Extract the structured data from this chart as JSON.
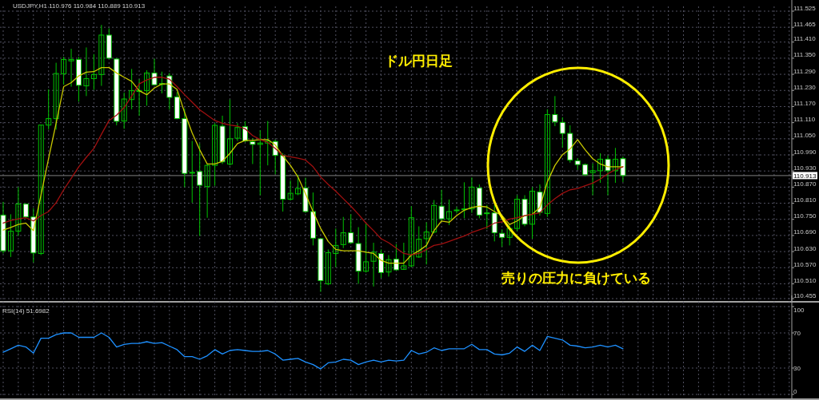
{
  "chart_data": [
    {
      "type": "candlestick",
      "title": "USDJPY,H1 110.976 110.984 110.889 110.913",
      "categories": [
        null,
        null,
        null,
        null,
        null,
        null,
        null,
        null,
        null,
        null,
        null,
        null,
        null,
        null,
        null,
        null,
        null,
        null,
        null,
        null,
        null,
        null,
        null,
        null,
        null,
        null,
        null,
        null,
        null,
        null,
        null,
        null,
        null,
        null,
        null,
        null,
        null,
        null,
        null,
        null,
        null,
        null,
        null,
        null,
        null,
        null,
        null,
        null,
        null,
        null,
        null,
        null,
        null,
        null,
        null,
        null,
        null,
        null,
        null,
        null,
        null,
        null,
        null,
        null,
        null,
        null,
        null,
        null,
        null,
        null,
        null,
        null,
        null,
        null,
        null,
        null,
        null,
        null,
        null,
        null,
        null,
        null,
        null
      ],
      "color": "#00c000",
      "ohlc": [
        [
          110.766,
          110.815,
          110.623,
          110.633
        ],
        [
          110.633,
          110.769,
          110.61,
          110.706
        ],
        [
          110.706,
          110.87,
          110.688,
          110.807
        ],
        [
          110.807,
          110.809,
          110.754,
          110.759
        ],
        [
          110.759,
          110.792,
          110.59,
          110.625
        ],
        [
          110.623,
          111.101,
          110.617,
          111.101
        ],
        [
          111.101,
          111.234,
          111.084,
          111.125
        ],
        [
          111.125,
          111.333,
          111.084,
          111.293
        ],
        [
          111.292,
          111.355,
          111.251,
          111.345
        ],
        [
          111.34,
          111.385,
          111.244,
          111.345
        ],
        [
          111.345,
          111.355,
          111.188,
          111.249
        ],
        [
          111.247,
          111.39,
          111.209,
          111.274
        ],
        [
          111.274,
          111.365,
          111.232,
          111.289
        ],
        [
          111.289,
          111.474,
          111.247,
          111.436
        ],
        [
          111.436,
          111.461,
          111.348,
          111.35
        ],
        [
          111.347,
          111.35,
          111.1,
          111.115
        ],
        [
          111.116,
          111.222,
          111.087,
          111.198
        ],
        [
          111.196,
          111.31,
          111.16,
          111.229
        ],
        [
          111.228,
          111.272,
          111.136,
          111.229
        ],
        [
          111.229,
          111.305,
          111.173,
          111.295
        ],
        [
          111.295,
          111.348,
          111.249,
          111.251
        ],
        [
          111.252,
          111.3,
          111.219,
          111.256
        ],
        [
          111.284,
          111.295,
          111.158,
          111.204
        ],
        [
          111.206,
          111.224,
          111.123,
          111.125
        ],
        [
          111.125,
          111.163,
          110.87,
          110.921
        ],
        [
          110.923,
          111.042,
          110.812,
          110.925
        ],
        [
          110.928,
          111.032,
          110.688,
          110.877
        ],
        [
          110.872,
          110.956,
          110.756,
          110.951
        ],
        [
          110.951,
          111.108,
          110.875,
          111.1
        ],
        [
          111.097,
          111.136,
          110.956,
          110.964
        ],
        [
          110.956,
          111.196,
          110.951,
          111.05
        ],
        [
          111.052,
          111.108,
          111.042,
          111.092
        ],
        [
          111.095,
          111.116,
          111.037,
          111.042
        ],
        [
          111.039,
          111.052,
          110.956,
          111.029
        ],
        [
          111.029,
          111.082,
          110.84,
          111.034
        ],
        [
          111.034,
          111.116,
          110.951,
          111.042
        ],
        [
          111.04,
          111.047,
          110.918,
          110.988
        ],
        [
          110.988,
          110.996,
          110.779,
          110.825
        ],
        [
          110.825,
          110.895,
          110.82,
          110.847
        ],
        [
          110.845,
          110.916,
          110.84,
          110.865
        ],
        [
          110.867,
          110.905,
          110.774,
          110.779
        ],
        [
          110.779,
          110.85,
          110.653,
          110.68
        ],
        [
          110.678,
          110.68,
          110.48,
          110.522
        ],
        [
          110.51,
          110.638,
          110.505,
          110.626
        ],
        [
          110.623,
          110.716,
          110.572,
          110.653
        ],
        [
          110.656,
          110.759,
          110.643,
          110.7
        ],
        [
          110.7,
          110.769,
          110.658,
          110.663
        ],
        [
          110.66,
          110.721,
          110.51,
          110.557
        ],
        [
          110.557,
          110.736,
          110.552,
          110.592
        ],
        [
          110.594,
          110.663,
          110.5,
          110.628
        ],
        [
          110.623,
          110.638,
          110.532,
          110.552
        ],
        [
          110.554,
          110.617,
          110.537,
          110.6
        ],
        [
          110.602,
          110.658,
          110.56,
          110.562
        ],
        [
          110.564,
          110.663,
          110.562,
          110.577
        ],
        [
          110.577,
          110.799,
          110.572,
          110.756
        ],
        [
          110.61,
          110.724,
          110.607,
          110.676
        ],
        [
          110.678,
          110.739,
          110.582,
          110.703
        ],
        [
          110.703,
          110.822,
          110.698,
          110.802
        ],
        [
          110.799,
          110.86,
          110.744,
          110.752
        ],
        [
          110.752,
          110.824,
          110.729,
          110.779
        ],
        [
          110.783,
          110.796,
          110.772,
          110.785
        ],
        [
          110.787,
          110.888,
          110.754,
          110.789
        ],
        [
          110.789,
          110.906,
          110.774,
          110.87
        ],
        [
          110.867,
          110.88,
          110.754,
          110.766
        ],
        [
          110.774,
          110.804,
          110.714,
          110.772
        ],
        [
          110.774,
          110.804,
          110.668,
          110.7
        ],
        [
          110.698,
          110.713,
          110.648,
          110.683
        ],
        [
          110.683,
          110.734,
          110.653,
          110.716
        ],
        [
          110.716,
          110.84,
          110.706,
          110.825
        ],
        [
          110.825,
          110.84,
          110.724,
          110.732
        ],
        [
          110.732,
          110.87,
          110.678,
          110.855
        ],
        [
          110.852,
          110.88,
          110.764,
          110.776
        ],
        [
          110.772,
          111.16,
          110.759,
          111.14
        ],
        [
          111.14,
          111.209,
          111.097,
          111.113
        ],
        [
          111.111,
          111.13,
          111.017,
          111.07
        ],
        [
          111.07,
          111.1,
          110.961,
          110.971
        ],
        [
          110.968,
          110.978,
          110.934,
          110.954
        ],
        [
          110.954,
          110.958,
          110.911,
          110.916
        ],
        [
          110.924,
          110.958,
          110.84,
          110.931
        ],
        [
          110.931,
          110.996,
          110.886,
          110.974
        ],
        [
          110.974,
          110.988,
          110.84,
          110.931
        ],
        [
          110.931,
          111.016,
          110.886,
          110.974
        ],
        [
          110.976,
          110.984,
          110.889,
          110.913
        ]
      ],
      "series": [
        {
          "type": "line",
          "color": "#c8c800",
          "values": [
            110.71,
            110.72,
            110.731,
            110.736,
            110.708,
            110.84,
            110.976,
            111.108,
            111.244,
            111.259,
            111.284,
            111.298,
            111.3,
            111.315,
            111.315,
            111.295,
            111.279,
            111.264,
            111.229,
            111.214,
            111.239,
            111.254,
            111.254,
            111.234,
            111.148,
            111.072,
            111.009,
            110.956,
            110.956,
            110.966,
            110.996,
            111.032,
            111.044,
            111.044,
            111.047,
            111.047,
            111.027,
            110.986,
            110.951,
            110.908,
            110.845,
            110.779,
            110.716,
            110.668,
            110.638,
            110.633,
            110.633,
            110.633,
            110.628,
            110.623,
            110.597,
            110.587,
            110.587,
            110.587,
            110.617,
            110.633,
            110.653,
            110.708,
            110.744,
            110.739,
            110.764,
            110.784,
            110.794,
            110.799,
            110.796,
            110.779,
            110.764,
            110.731,
            110.744,
            110.764,
            110.769,
            110.794,
            110.89,
            110.951,
            110.991,
            111.012,
            111.047,
            111.009,
            110.976,
            110.956,
            110.946,
            110.946,
            110.946
          ]
        },
        {
          "type": "line",
          "color": "#a01010",
          "values": [
            110.736,
            110.746,
            110.752,
            110.756,
            110.744,
            110.764,
            110.779,
            110.812,
            110.86,
            110.903,
            110.946,
            110.981,
            111.014,
            111.067,
            111.118,
            111.138,
            111.166,
            111.209,
            111.254,
            111.269,
            111.279,
            111.279,
            111.272,
            111.244,
            111.214,
            111.186,
            111.158,
            111.138,
            111.118,
            111.108,
            111.101,
            111.097,
            111.087,
            111.062,
            111.047,
            111.037,
            111.014,
            110.988,
            110.983,
            110.978,
            110.971,
            110.946,
            110.908,
            110.88,
            110.855,
            110.827,
            110.799,
            110.769,
            110.736,
            110.708,
            110.678,
            110.663,
            110.643,
            110.623,
            110.618,
            110.623,
            110.638,
            110.653,
            110.658,
            110.668,
            110.678,
            110.688,
            110.701,
            110.711,
            110.721,
            110.736,
            110.741,
            110.751,
            110.756,
            110.764,
            110.769,
            110.774,
            110.804,
            110.827,
            110.847,
            110.86,
            110.865,
            110.875,
            110.885,
            110.9,
            110.92,
            110.935,
            110.946
          ]
        }
      ],
      "ylim": [
        110.455,
        111.525
      ],
      "yticks": [
        111.525,
        111.465,
        {
          "value": 111.41,
          "label": "111.410"
        },
        {
          "value": 111.35,
          "label": "111.350"
        },
        {
          "value": 111.29,
          "label": "111.290"
        },
        {
          "value": 111.23,
          "label": "111.230"
        },
        {
          "value": 111.17,
          "label": "111.170"
        },
        {
          "value": 111.11,
          "label": "111.110"
        },
        {
          "value": 111.05,
          "label": "111.050"
        },
        {
          "value": 110.99,
          "label": "110.990"
        },
        {
          "value": 110.93,
          "label": "110.930"
        },
        {
          "value": 110.87,
          "label": "110.870"
        },
        {
          "value": 110.81,
          "label": "110.810"
        },
        {
          "value": 110.75,
          "label": "110.750"
        },
        {
          "value": 110.69,
          "label": "110.690"
        },
        {
          "value": 110.63,
          "label": "110.630"
        },
        {
          "value": 110.57,
          "label": "110.570"
        },
        {
          "value": 110.51,
          "label": "110.510"
        },
        110.455
      ],
      "ref_lines": [
        {
          "axis": "y",
          "value": 110.913,
          "label": "110.913",
          "color": "#808080"
        }
      ],
      "annotations": [
        "ドル円日足",
        "売りの圧力に負けている"
      ],
      "grid": true
    },
    {
      "type": "line",
      "title": "RSI(14) 51.6982",
      "categories": [
        null,
        null,
        null,
        null,
        null,
        null,
        null,
        null,
        null,
        null,
        null,
        null,
        null,
        null,
        null,
        null,
        null,
        null,
        null,
        null,
        null,
        null,
        null,
        null,
        null,
        null,
        null,
        null,
        null,
        null,
        null,
        null,
        null,
        null,
        null,
        null,
        null,
        null,
        null,
        null,
        null,
        null,
        null,
        null,
        null,
        null,
        null,
        null,
        null,
        null,
        null,
        null,
        null,
        null,
        null,
        null,
        null,
        null,
        null,
        null,
        null,
        null,
        null,
        null,
        null,
        null,
        null,
        null,
        null,
        null,
        null,
        null,
        null,
        null,
        null,
        null,
        null,
        null,
        null,
        null,
        null,
        null,
        null
      ],
      "series": [
        {
          "color": "#1e90ff",
          "values": [
            48,
            52,
            56,
            54,
            47,
            64,
            64,
            68,
            70,
            70,
            65,
            65,
            65,
            70,
            65,
            54,
            57,
            58,
            58,
            60,
            58,
            59,
            55,
            51,
            43,
            43,
            40,
            44,
            51,
            46,
            50,
            51,
            50,
            49,
            49,
            50,
            46,
            39,
            40,
            41,
            37,
            34,
            29,
            36,
            37,
            40,
            39,
            34,
            37,
            39,
            37,
            39,
            38,
            39,
            50,
            46,
            48,
            53,
            50,
            52,
            52,
            52,
            57,
            51,
            51,
            46,
            45,
            47,
            54,
            49,
            56,
            50,
            66,
            64,
            62,
            56,
            55,
            53,
            54,
            56,
            54,
            56,
            52
          ]
        }
      ],
      "ylim": [
        0,
        100
      ],
      "yticks": [
        0,
        30,
        70,
        100
      ],
      "grid": true
    }
  ]
}
